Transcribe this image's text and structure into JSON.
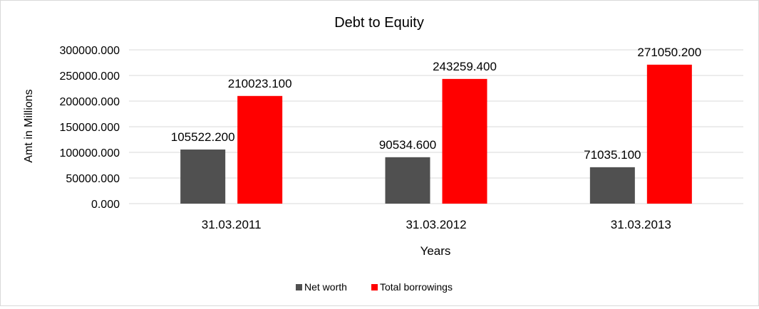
{
  "chart_data": {
    "type": "bar",
    "title": "Debt to Equity",
    "xlabel": "Years",
    "ylabel": "Amt in Millions",
    "categories": [
      "31.03.2011",
      "31.03.2012",
      "31.03.2013"
    ],
    "series": [
      {
        "name": "Net worth",
        "values": [
          105522.2,
          90534.6,
          71035.1
        ],
        "labels": [
          "105522.200",
          "90534.600",
          "71035.100"
        ],
        "color": "#505050"
      },
      {
        "name": "Total borrowings",
        "values": [
          210023.1,
          243259.4,
          271050.2
        ],
        "labels": [
          "210023.100",
          "243259.400",
          "271050.200"
        ],
        "color": "#ff0000"
      }
    ],
    "ylim": [
      0,
      300000
    ],
    "yticks": [
      0,
      50000,
      100000,
      150000,
      200000,
      250000,
      300000
    ],
    "ytick_labels": [
      "0.000",
      "50000.000",
      "100000.000",
      "150000.000",
      "200000.000",
      "250000.000",
      "300000.000"
    ],
    "grid": true,
    "legend_position": "bottom"
  }
}
